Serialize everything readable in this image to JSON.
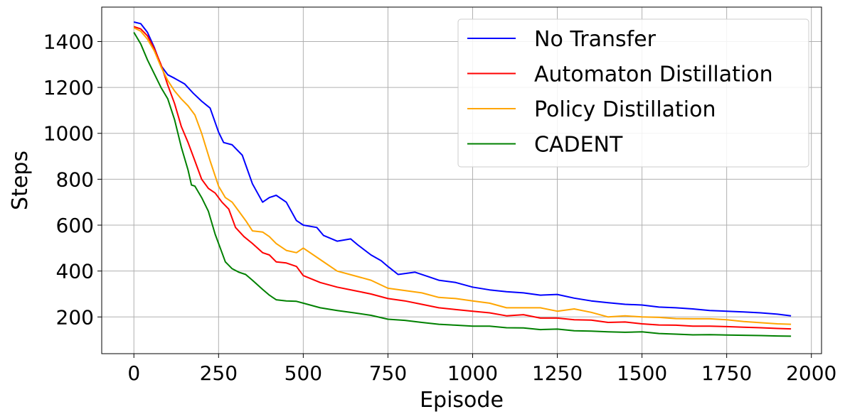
{
  "chart_data": {
    "type": "line",
    "title": "",
    "xlabel": "Episode",
    "ylabel": "Steps",
    "xlim": [
      -95,
      2030
    ],
    "ylim": [
      40,
      1550
    ],
    "xticks": [
      0,
      250,
      500,
      750,
      1000,
      1250,
      1500,
      1750,
      2000
    ],
    "yticks": [
      200,
      400,
      600,
      800,
      1000,
      1200,
      1400
    ],
    "grid": true,
    "legend_position": "top-right",
    "series": [
      {
        "name": "No Transfer",
        "color": "#0000ff",
        "x": [
          0,
          20,
          40,
          60,
          80,
          100,
          120,
          150,
          175,
          200,
          225,
          250,
          265,
          290,
          320,
          350,
          380,
          400,
          420,
          450,
          480,
          500,
          540,
          560,
          600,
          640,
          660,
          700,
          730,
          750,
          780,
          830,
          870,
          900,
          950,
          1000,
          1050,
          1100,
          1150,
          1200,
          1250,
          1300,
          1350,
          1400,
          1450,
          1500,
          1550,
          1600,
          1650,
          1700,
          1750,
          1800,
          1850,
          1900,
          1940
        ],
        "y": [
          1485,
          1478,
          1440,
          1375,
          1295,
          1255,
          1240,
          1215,
          1175,
          1140,
          1110,
          1005,
          960,
          950,
          905,
          780,
          700,
          720,
          730,
          700,
          620,
          600,
          590,
          555,
          530,
          540,
          515,
          470,
          445,
          420,
          385,
          395,
          375,
          360,
          350,
          330,
          318,
          310,
          305,
          295,
          298,
          282,
          270,
          262,
          255,
          252,
          243,
          240,
          235,
          228,
          225,
          222,
          218,
          212,
          205
        ]
      },
      {
        "name": "Automaton Distillation",
        "color": "#ff0000",
        "x": [
          0,
          20,
          40,
          60,
          80,
          100,
          120,
          140,
          160,
          180,
          200,
          220,
          240,
          260,
          280,
          300,
          325,
          350,
          380,
          400,
          420,
          450,
          480,
          500,
          550,
          600,
          650,
          700,
          750,
          800,
          850,
          900,
          950,
          1000,
          1050,
          1100,
          1150,
          1200,
          1250,
          1300,
          1350,
          1400,
          1450,
          1500,
          1550,
          1600,
          1650,
          1700,
          1750,
          1800,
          1850,
          1900,
          1940
        ],
        "y": [
          1465,
          1455,
          1425,
          1370,
          1300,
          1210,
          1130,
          1030,
          960,
          880,
          800,
          760,
          740,
          700,
          670,
          590,
          550,
          520,
          480,
          470,
          440,
          435,
          420,
          380,
          350,
          330,
          315,
          300,
          280,
          270,
          255,
          240,
          232,
          225,
          218,
          205,
          210,
          195,
          195,
          188,
          186,
          176,
          178,
          170,
          165,
          164,
          160,
          160,
          158,
          155,
          153,
          150,
          148
        ]
      },
      {
        "name": "Policy Distillation",
        "color": "#ffa500",
        "x": [
          0,
          20,
          40,
          60,
          80,
          100,
          120,
          140,
          160,
          180,
          200,
          225,
          250,
          270,
          290,
          310,
          330,
          350,
          380,
          400,
          420,
          450,
          480,
          500,
          550,
          600,
          650,
          700,
          750,
          800,
          850,
          900,
          950,
          1000,
          1050,
          1100,
          1150,
          1200,
          1250,
          1300,
          1350,
          1400,
          1450,
          1500,
          1550,
          1600,
          1650,
          1700,
          1750,
          1800,
          1850,
          1900,
          1940
        ],
        "y": [
          1460,
          1445,
          1410,
          1360,
          1290,
          1230,
          1185,
          1150,
          1120,
          1080,
          1000,
          880,
          770,
          720,
          700,
          660,
          620,
          575,
          570,
          550,
          520,
          490,
          480,
          500,
          450,
          400,
          380,
          360,
          325,
          315,
          305,
          285,
          280,
          270,
          260,
          240,
          240,
          240,
          225,
          235,
          220,
          200,
          205,
          200,
          198,
          193,
          192,
          192,
          188,
          180,
          175,
          170,
          168
        ]
      },
      {
        "name": "CADENT",
        "color": "#008000",
        "x": [
          0,
          20,
          40,
          60,
          80,
          100,
          120,
          140,
          160,
          170,
          180,
          200,
          220,
          240,
          260,
          270,
          290,
          310,
          330,
          350,
          380,
          400,
          420,
          450,
          480,
          500,
          550,
          600,
          650,
          700,
          750,
          800,
          850,
          900,
          950,
          1000,
          1050,
          1100,
          1150,
          1200,
          1250,
          1300,
          1350,
          1400,
          1450,
          1500,
          1550,
          1600,
          1650,
          1700,
          1750,
          1800,
          1850,
          1900,
          1940
        ],
        "y": [
          1440,
          1390,
          1320,
          1260,
          1200,
          1150,
          1060,
          940,
          840,
          775,
          770,
          720,
          660,
          560,
          480,
          440,
          410,
          395,
          385,
          360,
          320,
          295,
          275,
          270,
          268,
          260,
          240,
          228,
          218,
          207,
          190,
          185,
          176,
          168,
          164,
          160,
          160,
          153,
          152,
          145,
          147,
          140,
          138,
          135,
          133,
          135,
          128,
          125,
          122,
          123,
          121,
          120,
          119,
          117,
          116
        ]
      }
    ]
  }
}
